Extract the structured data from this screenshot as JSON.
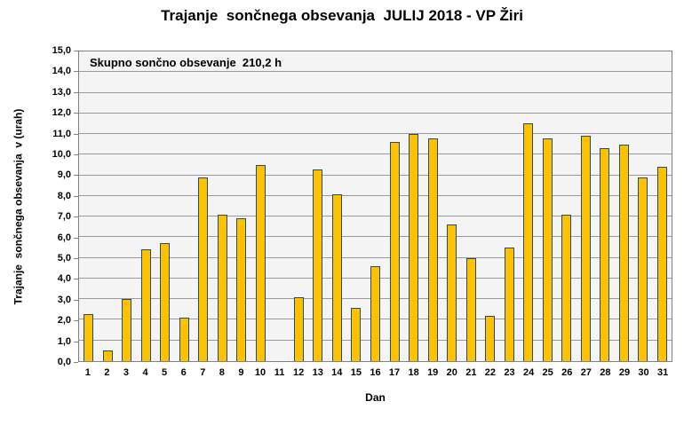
{
  "title": "Trajanje  sončnega obsevanja  JULIJ 2018 - VP Žiri",
  "annotation": "Skupno sončno obsevanje  210,2 h",
  "chart_data": {
    "type": "bar",
    "title": "Trajanje  sončnega obsevanja  JULIJ 2018 - VP Žiri",
    "subtitle": "",
    "annotation": "Skupno sončno obsevanje  210,2 h",
    "xlabel": "Dan",
    "ylabel": "Trajanje  sončnega obsevanja  v (urah)",
    "categories": [
      "1",
      "2",
      "3",
      "4",
      "5",
      "6",
      "7",
      "8",
      "9",
      "10",
      "11",
      "12",
      "13",
      "14",
      "15",
      "16",
      "17",
      "18",
      "19",
      "20",
      "21",
      "22",
      "23",
      "24",
      "25",
      "26",
      "27",
      "28",
      "29",
      "30",
      "31"
    ],
    "values": [
      2.3,
      0.5,
      3.0,
      5.4,
      5.7,
      2.1,
      8.9,
      7.1,
      6.9,
      9.5,
      0,
      3.1,
      9.3,
      8.1,
      2.6,
      4.6,
      10.6,
      11.0,
      10.8,
      6.6,
      5.0,
      2.2,
      5.5,
      11.5,
      10.8,
      7.1,
      10.9,
      10.3,
      10.5,
      8.9,
      9.4
    ],
    "total_hours": "210,2",
    "ylim": [
      0,
      15
    ],
    "ytick_step": 1.0,
    "ytick_labels": [
      "0,0",
      "1,0",
      "2,0",
      "3,0",
      "4,0",
      "5,0",
      "6,0",
      "7,0",
      "8,0",
      "9,0",
      "10,0",
      "11,0",
      "12,0",
      "13,0",
      "14,0",
      "15,0"
    ],
    "decimal_separator": ",",
    "grid": true,
    "legend": "none",
    "colors": {
      "bar_fill": "#fcc200",
      "bar_border": "#254a73",
      "plot_background": "#f4f4f4",
      "gridline": "#999999",
      "axis": "#808080",
      "text": "#000000",
      "page_background": "#ffffff"
    }
  }
}
